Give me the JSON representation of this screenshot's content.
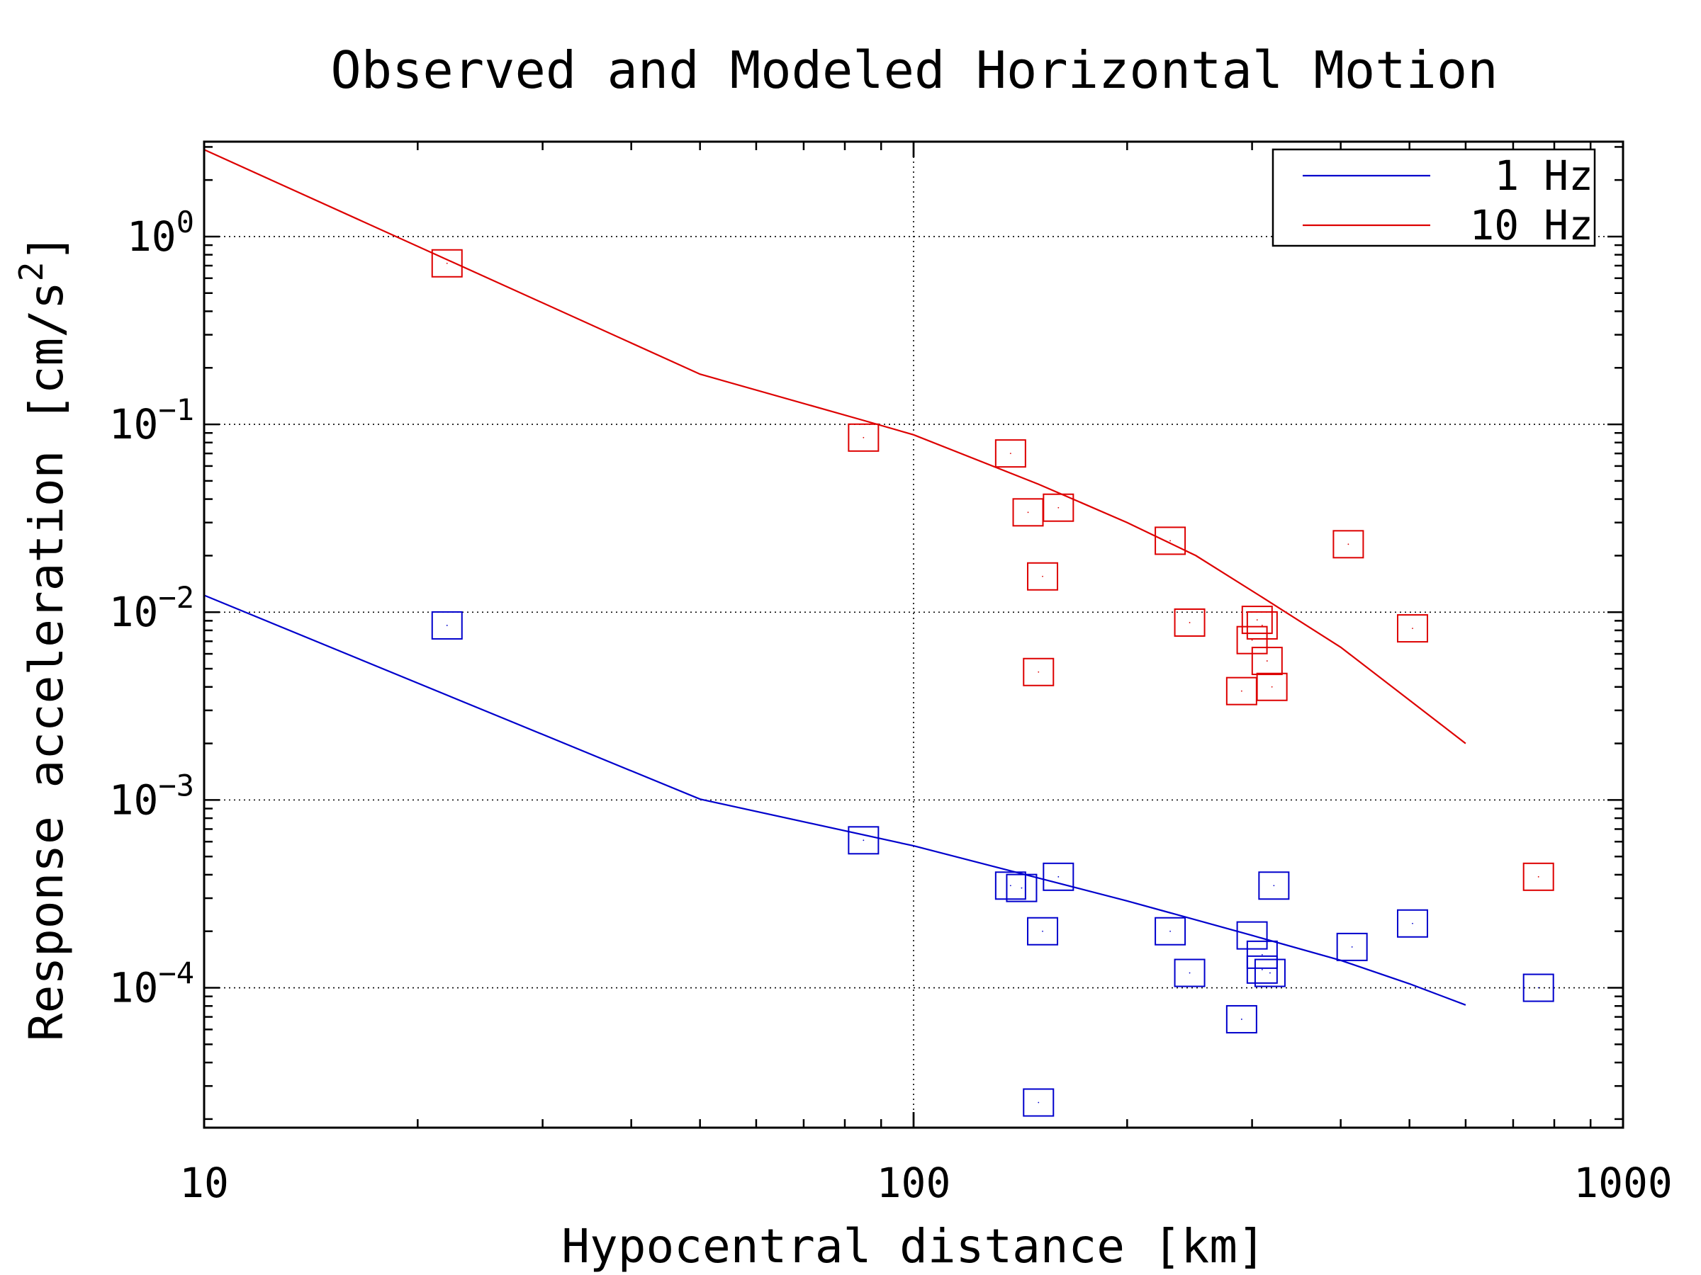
{
  "chart_data": {
    "type": "scatter",
    "title": "Observed and Modeled Horizontal Motion",
    "xlabel": "Hypocentral distance [km]",
    "ylabel": "Response acceleration [cm/s^2]",
    "xscale": "log",
    "yscale": "log",
    "xlim": [
      10,
      1000
    ],
    "ylim": [
      1.8e-05,
      3.2
    ],
    "x_ticks": [
      {
        "value": 10,
        "label": "10"
      },
      {
        "value": 100,
        "label": "100"
      },
      {
        "value": 1000,
        "label": "1000"
      }
    ],
    "y_ticks": [
      {
        "value": 1,
        "base": "10",
        "exp": "0"
      },
      {
        "value": 0.1,
        "base": "10",
        "exp": "−1"
      },
      {
        "value": 0.01,
        "base": "10",
        "exp": "−2"
      },
      {
        "value": 0.001,
        "base": "10",
        "exp": "−3"
      },
      {
        "value": 0.0001,
        "base": "10",
        "exp": "−4"
      }
    ],
    "grid": {
      "major_x": [
        100
      ],
      "major_y": [
        1,
        0.1,
        0.01,
        0.001,
        0.0001
      ],
      "style": "dotted"
    },
    "legend": {
      "position": "top-right",
      "entries": [
        {
          "label": "1 Hz",
          "color": "#0000cc"
        },
        {
          "label": "10 Hz",
          "color": "#dd0000"
        }
      ]
    },
    "series": [
      {
        "name": "1 Hz",
        "color": "#0000cc",
        "model_line": [
          [
            10,
            0.0123
          ],
          [
            50,
            0.00101
          ],
          [
            100,
            0.00057
          ],
          [
            200,
            0.00029
          ],
          [
            300,
            0.00019
          ],
          [
            400,
            0.00014
          ],
          [
            500,
            0.000105
          ],
          [
            600,
            8.1e-05
          ]
        ],
        "observed": [
          [
            22,
            0.0085
          ],
          [
            85,
            0.00061
          ],
          [
            137,
            0.00035
          ],
          [
            142,
            0.00034
          ],
          [
            150,
            2.45e-05
          ],
          [
            152,
            0.0002
          ],
          [
            160,
            0.00039
          ],
          [
            230,
            0.0002
          ],
          [
            245,
            0.00012
          ],
          [
            290,
            6.8e-05
          ],
          [
            300,
            0.00019
          ],
          [
            310,
            0.00015
          ],
          [
            310,
            0.000125
          ],
          [
            318,
            0.00012
          ],
          [
            322,
            0.00035
          ],
          [
            415,
            0.000165
          ],
          [
            505,
            0.00022
          ],
          [
            760,
            0.0001
          ]
        ]
      },
      {
        "name": "10 Hz",
        "color": "#dd0000",
        "model_line": [
          [
            10,
            2.9
          ],
          [
            50,
            0.185
          ],
          [
            85,
            0.105
          ],
          [
            100,
            0.088
          ],
          [
            150,
            0.048
          ],
          [
            200,
            0.03
          ],
          [
            250,
            0.02
          ],
          [
            310,
            0.012
          ],
          [
            400,
            0.0065
          ],
          [
            500,
            0.0034
          ],
          [
            600,
            0.002
          ]
        ],
        "observed": [
          [
            22,
            0.72
          ],
          [
            85,
            0.085
          ],
          [
            137,
            0.07
          ],
          [
            145,
            0.034
          ],
          [
            150,
            0.0048
          ],
          [
            152,
            0.0155
          ],
          [
            160,
            0.036
          ],
          [
            230,
            0.024
          ],
          [
            245,
            0.0088
          ],
          [
            290,
            0.0038
          ],
          [
            300,
            0.0071
          ],
          [
            305,
            0.0091
          ],
          [
            310,
            0.0085
          ],
          [
            315,
            0.0055
          ],
          [
            320,
            0.004
          ],
          [
            410,
            0.023
          ],
          [
            505,
            0.0082
          ],
          [
            760,
            0.00039
          ]
        ]
      }
    ]
  }
}
